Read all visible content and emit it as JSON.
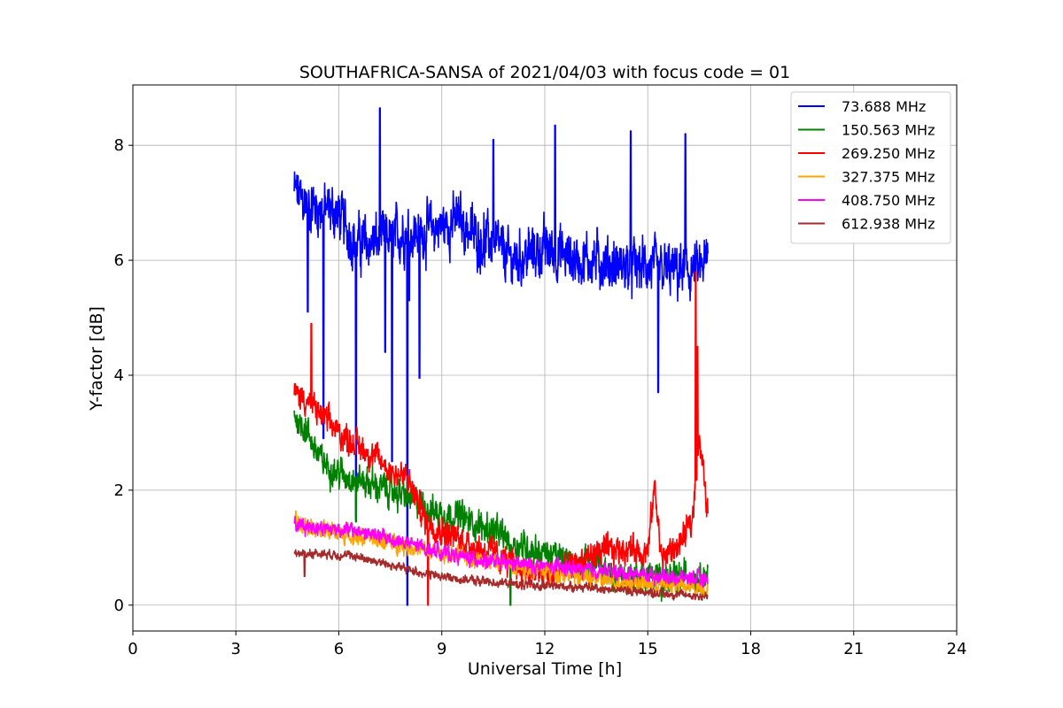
{
  "chart_data": {
    "type": "line",
    "title": "SOUTHAFRICA-SANSA of 2021/04/03 with focus code = 01",
    "xlabel": "Universal Time [h]",
    "ylabel": "Y-factor [dB]",
    "xlim": [
      0,
      24
    ],
    "ylim": [
      -0.45,
      9.05
    ],
    "xticks": [
      0,
      3,
      6,
      9,
      12,
      15,
      18,
      21,
      24
    ],
    "yticks": [
      0,
      2,
      4,
      6,
      8
    ],
    "xtick_labels": [
      "0",
      "3",
      "6",
      "9",
      "12",
      "15",
      "18",
      "21",
      "24"
    ],
    "ytick_labels": [
      "0",
      "2",
      "4",
      "6",
      "8"
    ],
    "grid": true,
    "legend_position": "top-right",
    "series": [
      {
        "name": " 73.688 MHz",
        "color": "#0000ff",
        "x": [
          4.7,
          5.0,
          5.5,
          6.0,
          6.5,
          7.0,
          7.5,
          8.0,
          8.5,
          9.0,
          9.5,
          10.0,
          10.5,
          11.0,
          11.5,
          12.0,
          12.5,
          13.0,
          13.5,
          14.0,
          14.5,
          15.0,
          15.5,
          16.0,
          16.5,
          16.75
        ],
        "y": [
          7.2,
          7.0,
          6.9,
          6.8,
          6.3,
          6.3,
          6.4,
          6.5,
          6.5,
          6.6,
          6.7,
          6.4,
          6.3,
          6.0,
          6.1,
          6.2,
          6.1,
          6.0,
          6.0,
          5.9,
          5.9,
          5.9,
          5.8,
          5.8,
          5.8,
          6.0
        ],
        "noise": 0.55,
        "spikes": [
          [
            5.1,
            5.1
          ],
          [
            5.55,
            2.9
          ],
          [
            6.5,
            1.5
          ],
          [
            7.2,
            8.65
          ],
          [
            7.35,
            4.4
          ],
          [
            7.55,
            2.5
          ],
          [
            8.0,
            0.0
          ],
          [
            8.05,
            5.3
          ],
          [
            8.35,
            3.95
          ],
          [
            10.5,
            8.1
          ],
          [
            12.3,
            8.35
          ],
          [
            14.5,
            8.25
          ],
          [
            15.3,
            3.7
          ],
          [
            16.1,
            8.2
          ]
        ]
      },
      {
        "name": "150.563 MHz",
        "color": "#008000",
        "x": [
          4.7,
          5.0,
          5.5,
          6.0,
          6.5,
          7.0,
          7.5,
          8.0,
          8.5,
          9.0,
          9.5,
          10.0,
          10.5,
          11.0,
          11.5,
          12.0,
          12.5,
          13.0,
          13.5,
          14.0,
          14.5,
          15.0,
          15.5,
          16.0,
          16.5,
          16.75
        ],
        "y": [
          3.3,
          3.1,
          2.5,
          2.3,
          2.2,
          2.1,
          2.0,
          1.9,
          1.7,
          1.6,
          1.55,
          1.4,
          1.3,
          1.1,
          1.0,
          0.9,
          0.8,
          0.7,
          0.7,
          0.5,
          0.5,
          0.5,
          0.45,
          0.5,
          0.5,
          0.55
        ],
        "noise": 0.32,
        "spikes": [
          [
            6.5,
            1.45
          ],
          [
            11.0,
            0.0
          ]
        ]
      },
      {
        "name": "269.250 MHz",
        "color": "#ff0000",
        "x": [
          4.7,
          5.0,
          5.5,
          6.0,
          6.5,
          7.0,
          7.5,
          8.0,
          8.5,
          9.0,
          9.5,
          10.0,
          10.5,
          11.0,
          11.5,
          12.0,
          12.5,
          13.0,
          13.5,
          14.0,
          14.5,
          15.0,
          15.2,
          15.4,
          16.0,
          16.3,
          16.5,
          16.75
        ],
        "y": [
          3.7,
          3.6,
          3.3,
          3.0,
          2.8,
          2.6,
          2.35,
          2.2,
          1.5,
          1.3,
          1.15,
          1.0,
          0.9,
          0.7,
          0.6,
          0.5,
          0.6,
          0.75,
          0.9,
          0.95,
          1.0,
          0.9,
          2.1,
          0.8,
          1.1,
          1.5,
          2.9,
          1.6
        ],
        "noise": 0.3,
        "spikes": [
          [
            5.2,
            4.9
          ],
          [
            8.6,
            0.0
          ],
          [
            16.4,
            5.8
          ],
          [
            16.45,
            4.5
          ]
        ]
      },
      {
        "name": "327.375 MHz",
        "color": "#ffa500",
        "x": [
          4.7,
          5.5,
          6.5,
          7.5,
          8.5,
          9.5,
          10.5,
          11.5,
          12.5,
          13.5,
          14.5,
          15.5,
          16.75
        ],
        "y": [
          1.5,
          1.3,
          1.2,
          1.1,
          0.95,
          0.85,
          0.75,
          0.65,
          0.55,
          0.45,
          0.4,
          0.35,
          0.3
        ],
        "noise": 0.18,
        "spikes": []
      },
      {
        "name": "408.750 MHz",
        "color": "#ff00ff",
        "x": [
          4.7,
          5.5,
          6.5,
          7.5,
          8.5,
          9.5,
          10.5,
          11.5,
          12.5,
          13.5,
          14.5,
          15.5,
          16.75
        ],
        "y": [
          1.4,
          1.35,
          1.3,
          1.15,
          1.0,
          0.85,
          0.75,
          0.7,
          0.65,
          0.6,
          0.55,
          0.5,
          0.45
        ],
        "noise": 0.15,
        "spikes": []
      },
      {
        "name": "612.938 MHz",
        "color": "#a52a2a",
        "x": [
          4.7,
          5.5,
          6.5,
          7.5,
          8.5,
          9.5,
          10.5,
          11.5,
          12.5,
          13.5,
          14.5,
          15.5,
          16.75
        ],
        "y": [
          0.9,
          0.9,
          0.85,
          0.7,
          0.55,
          0.45,
          0.4,
          0.35,
          0.33,
          0.3,
          0.25,
          0.2,
          0.15
        ],
        "noise": 0.09,
        "spikes": [
          [
            5.0,
            0.5
          ]
        ]
      }
    ]
  }
}
